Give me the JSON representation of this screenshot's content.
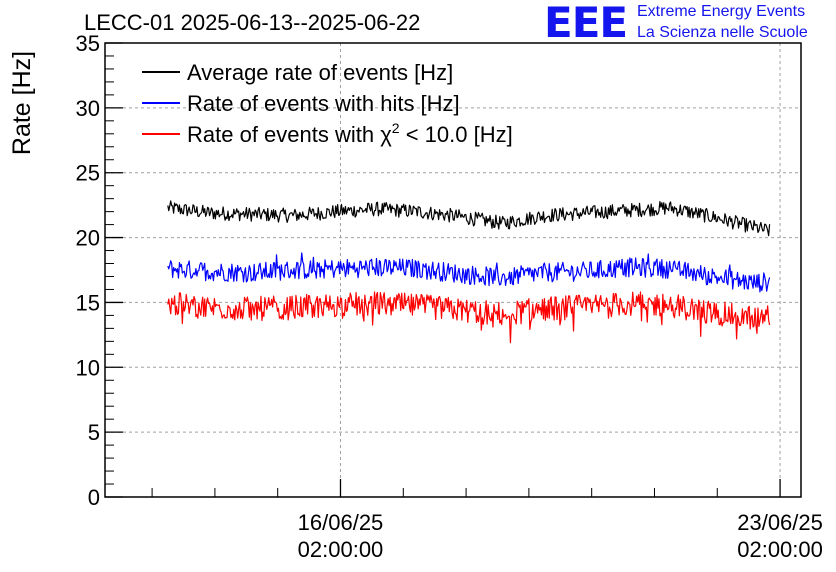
{
  "chart_data": {
    "type": "line",
    "title": "LECC-01 2025-06-13--2025-06-22",
    "ylabel": "Rate [Hz]",
    "xlabel": "",
    "ylim": [
      0,
      35
    ],
    "yticks": [
      0,
      5,
      10,
      15,
      20,
      25,
      30,
      35
    ],
    "xlim": [
      "2025-06-12 08:00:00",
      "2025-06-23 10:00:00"
    ],
    "xticks": [
      {
        "date": "2025-06-16 02:00:00",
        "label_date": "16/06/25",
        "label_time": "02:00:00"
      },
      {
        "date": "2025-06-23 02:00:00",
        "label_date": "23/06/25",
        "label_time": "02:00:00"
      }
    ],
    "grid": true,
    "legend_position": "top-left",
    "series": [
      {
        "name": "Average rate of events [Hz]",
        "color": "#000000",
        "x": [
          "2025-06-13 08:00",
          "2025-06-14 00:00",
          "2025-06-14 16:00",
          "2025-06-15 08:00",
          "2025-06-16 00:00",
          "2025-06-16 16:00",
          "2025-06-17 08:00",
          "2025-06-18 00:00",
          "2025-06-18 16:00",
          "2025-06-19 08:00",
          "2025-06-20 00:00",
          "2025-06-20 16:00",
          "2025-06-21 08:00",
          "2025-06-22 00:00",
          "2025-06-22 16:00",
          "2025-06-22 22:00"
        ],
        "values": [
          22.3,
          21.9,
          21.8,
          21.7,
          22.0,
          22.2,
          22.0,
          21.6,
          21.1,
          21.7,
          21.9,
          22.1,
          22.3,
          21.6,
          20.8,
          20.5
        ]
      },
      {
        "name": "Rate of events with hits [Hz]",
        "color": "#0000ff",
        "x": [
          "2025-06-13 08:00",
          "2025-06-14 00:00",
          "2025-06-14 16:00",
          "2025-06-15 08:00",
          "2025-06-16 00:00",
          "2025-06-16 16:00",
          "2025-06-17 08:00",
          "2025-06-18 00:00",
          "2025-06-18 16:00",
          "2025-06-19 08:00",
          "2025-06-20 00:00",
          "2025-06-20 16:00",
          "2025-06-21 08:00",
          "2025-06-22 00:00",
          "2025-06-22 16:00",
          "2025-06-22 22:00"
        ],
        "values": [
          17.6,
          17.4,
          17.3,
          17.5,
          17.6,
          17.7,
          17.6,
          17.2,
          16.9,
          17.3,
          17.4,
          17.7,
          17.6,
          17.0,
          16.5,
          16.6
        ]
      },
      {
        "name": "Rate of events with χ² < 10.0 [Hz]",
        "color": "#ff0000",
        "x": [
          "2025-06-13 08:00",
          "2025-06-14 00:00",
          "2025-06-14 16:00",
          "2025-06-15 08:00",
          "2025-06-16 00:00",
          "2025-06-16 16:00",
          "2025-06-17 08:00",
          "2025-06-18 00:00",
          "2025-06-18 16:00",
          "2025-06-19 08:00",
          "2025-06-20 00:00",
          "2025-06-20 16:00",
          "2025-06-21 08:00",
          "2025-06-22 00:00",
          "2025-06-22 16:00",
          "2025-06-22 22:00"
        ],
        "values": [
          14.9,
          14.6,
          14.5,
          14.6,
          14.8,
          14.9,
          14.7,
          14.4,
          14.1,
          14.5,
          14.7,
          14.9,
          14.8,
          14.2,
          13.8,
          13.9
        ]
      }
    ]
  },
  "legend_texts": {
    "s0": "Average rate of events [Hz]",
    "s1": "Rate of events with hits [Hz]",
    "s2_prefix": "Rate of events with ",
    "s2_chi": "χ",
    "s2_sup": "2",
    "s2_suffix": " < 10.0 [Hz]"
  },
  "logo": {
    "mark": "EEE",
    "line1": "Extreme Energy Events",
    "line2": "La Scienza nelle Scuole"
  }
}
